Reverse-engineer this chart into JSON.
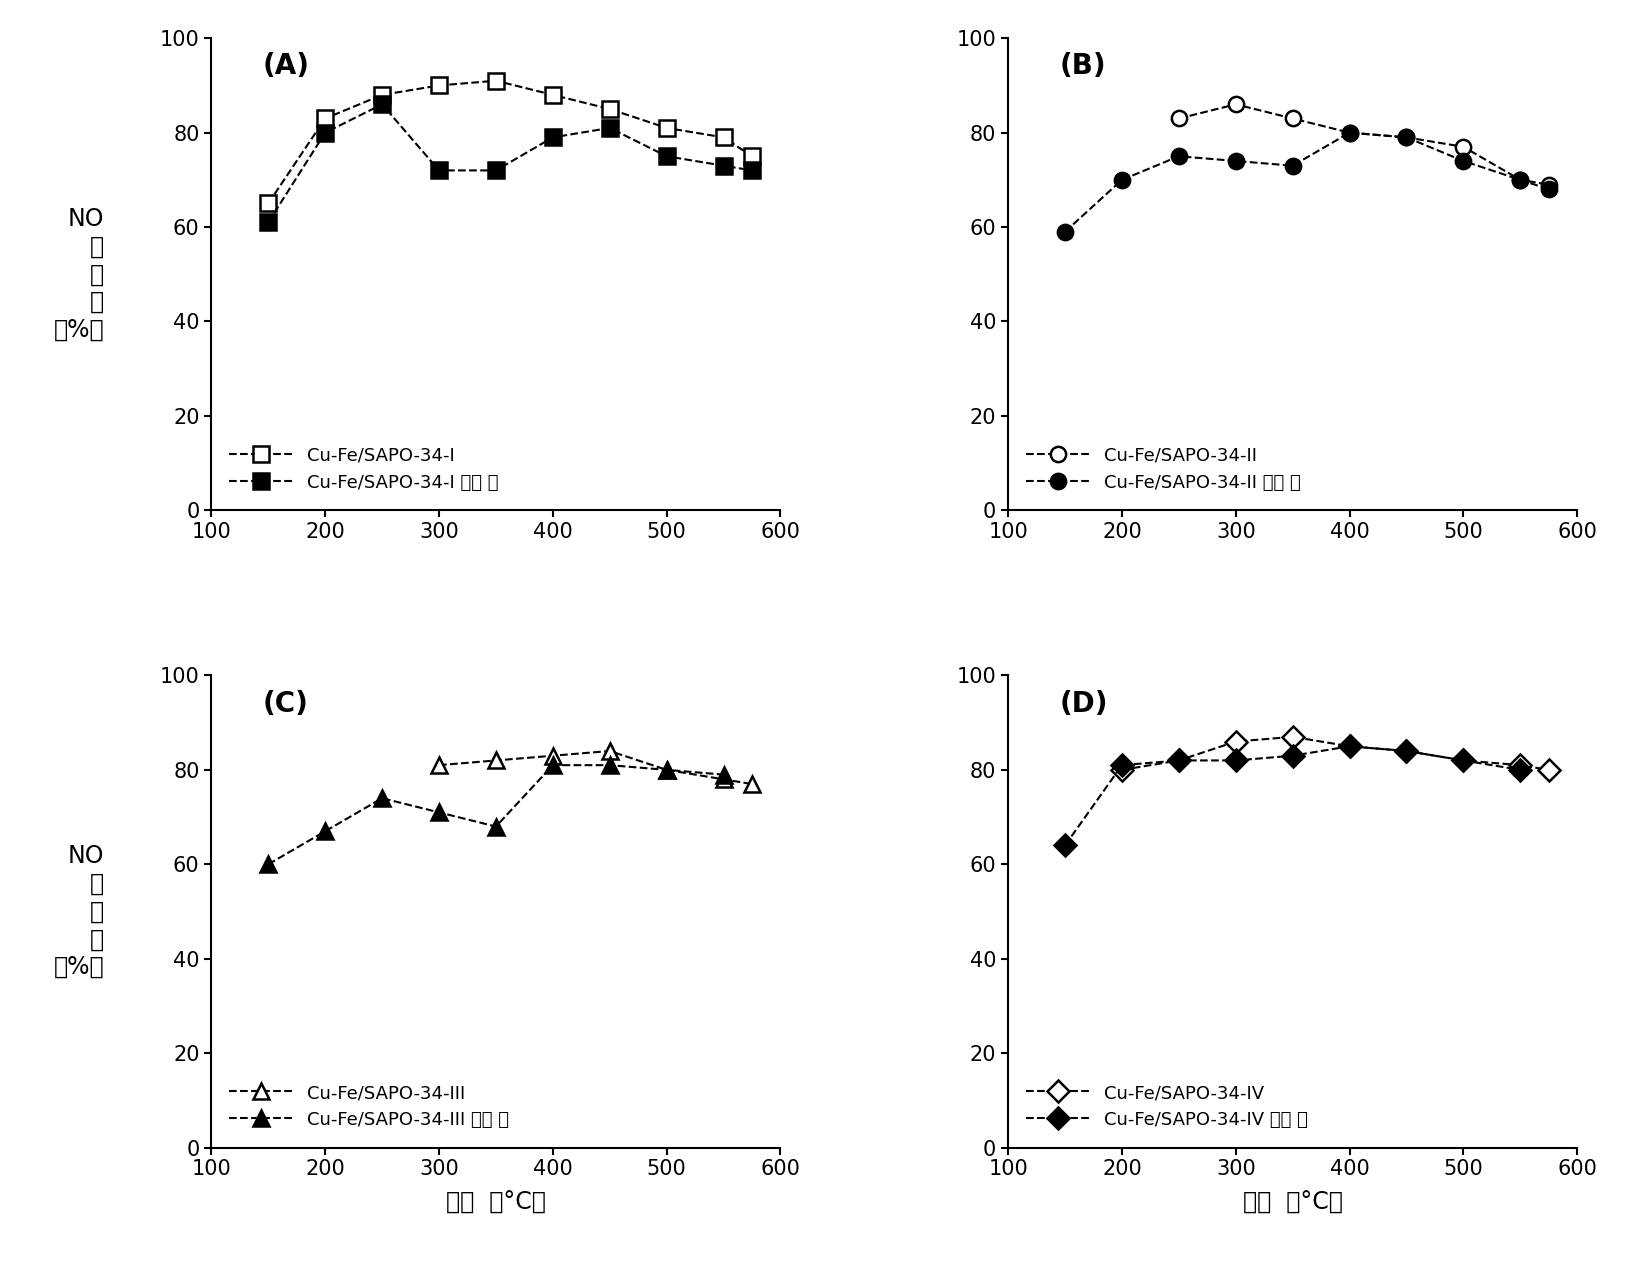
{
  "panel_A": {
    "label": "(A)",
    "open_label": "Cu-Fe/SAPO-34-I",
    "filled_label": "Cu-Fe/SAPO-34-I 一丙 稀",
    "open_x": [
      150,
      200,
      250,
      300,
      350,
      400,
      450,
      500,
      550,
      575
    ],
    "open_y": [
      65,
      83,
      88,
      90,
      91,
      88,
      85,
      81,
      79,
      75
    ],
    "filled_x": [
      150,
      200,
      250,
      300,
      350,
      400,
      450,
      500,
      550,
      575
    ],
    "filled_y": [
      61,
      80,
      86,
      72,
      72,
      79,
      81,
      75,
      73,
      72
    ]
  },
  "panel_B": {
    "label": "(B)",
    "open_label": "Cu-Fe/SAPO-34-II",
    "filled_label": "Cu-Fe/SAPO-34-II 一丙 稀",
    "open_x": [
      250,
      300,
      350,
      400,
      450,
      500,
      550,
      575
    ],
    "open_y": [
      83,
      86,
      83,
      80,
      79,
      77,
      70,
      69
    ],
    "filled_x": [
      150,
      200,
      250,
      300,
      350,
      400,
      450,
      500,
      550,
      575
    ],
    "filled_y": [
      59,
      70,
      75,
      74,
      73,
      80,
      79,
      74,
      70,
      68
    ]
  },
  "panel_C": {
    "label": "(C)",
    "open_label": "Cu-Fe/SAPO-34-III",
    "filled_label": "Cu-Fe/SAPO-34-III 一丙 稀",
    "open_x": [
      300,
      350,
      400,
      450,
      500,
      550,
      575
    ],
    "open_y": [
      81,
      82,
      83,
      84,
      80,
      78,
      77
    ],
    "filled_x": [
      150,
      200,
      250,
      300,
      350,
      400,
      450,
      500,
      550
    ],
    "filled_y": [
      60,
      67,
      74,
      71,
      68,
      81,
      81,
      80,
      79
    ]
  },
  "panel_D": {
    "label": "(D)",
    "open_label": "Cu-Fe/SAPO-34-IV",
    "filled_label": "Cu-Fe/SAPO-34-IV 一丙 稀",
    "open_x": [
      200,
      250,
      300,
      350,
      400,
      450,
      500,
      550,
      575
    ],
    "open_y": [
      80,
      82,
      86,
      87,
      85,
      84,
      82,
      81,
      80
    ],
    "filled_x": [
      150,
      200,
      250,
      300,
      350,
      400,
      450,
      500,
      550
    ],
    "filled_y": [
      64,
      81,
      82,
      82,
      83,
      85,
      84,
      82,
      80
    ]
  },
  "xlabel": "温度  （°C）",
  "xlim": [
    100,
    600
  ],
  "ylim": [
    0,
    100
  ],
  "xticks": [
    100,
    200,
    300,
    400,
    500,
    600
  ],
  "yticks": [
    0,
    20,
    40,
    60,
    80,
    100
  ],
  "marker_size": 11,
  "line_width": 1.5
}
